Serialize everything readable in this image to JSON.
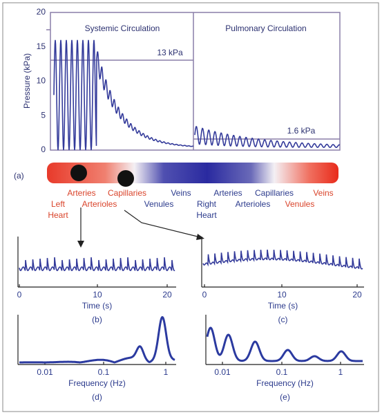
{
  "top": {
    "y_label": "Pressure (kPa)",
    "y_ticks": [
      "20",
      "15",
      "10",
      "5",
      "0"
    ],
    "systemic_title": "Systemic Circulation",
    "pulmonary_title": "Pulmonary Circulation",
    "level_systemic": "13 kPa",
    "level_pulmonary": "1.6 kPa"
  },
  "vessel": {
    "panel": "(a)",
    "labels": [
      {
        "text": "Arteries",
        "color": "red"
      },
      {
        "text": "Capillaries",
        "color": "red"
      },
      {
        "text": "Veins",
        "color": "blue"
      },
      {
        "text": "Arteries",
        "color": "blue"
      },
      {
        "text": "Capillaries",
        "color": "blue"
      },
      {
        "text": "Veins",
        "color": "red"
      },
      {
        "text": "Left",
        "color": "red"
      },
      {
        "text": "Arterioles",
        "color": "red"
      },
      {
        "text": "Venules",
        "color": "blue"
      },
      {
        "text": "Right",
        "color": "blue"
      },
      {
        "text": "Arterioles",
        "color": "blue"
      },
      {
        "text": "Venules",
        "color": "red"
      },
      {
        "text": "Heart",
        "color": "red"
      },
      {
        "text": "Heart",
        "color": "blue"
      }
    ]
  },
  "panels": [
    {
      "ticks": [
        "0",
        "10",
        "20"
      ],
      "x_label": "Time (s)",
      "panel": "(b)"
    },
    {
      "ticks": [
        "0",
        "10",
        "20"
      ],
      "x_label": "Time (s)",
      "panel": "(c)"
    },
    {
      "ticks": [
        "0.01",
        "0.1",
        "1"
      ],
      "x_label": "Frequency (Hz)",
      "panel": "(d)"
    },
    {
      "ticks": [
        "0.01",
        "0.1",
        "1"
      ],
      "x_label": "Frequency (Hz)",
      "panel": "(e)"
    }
  ]
}
